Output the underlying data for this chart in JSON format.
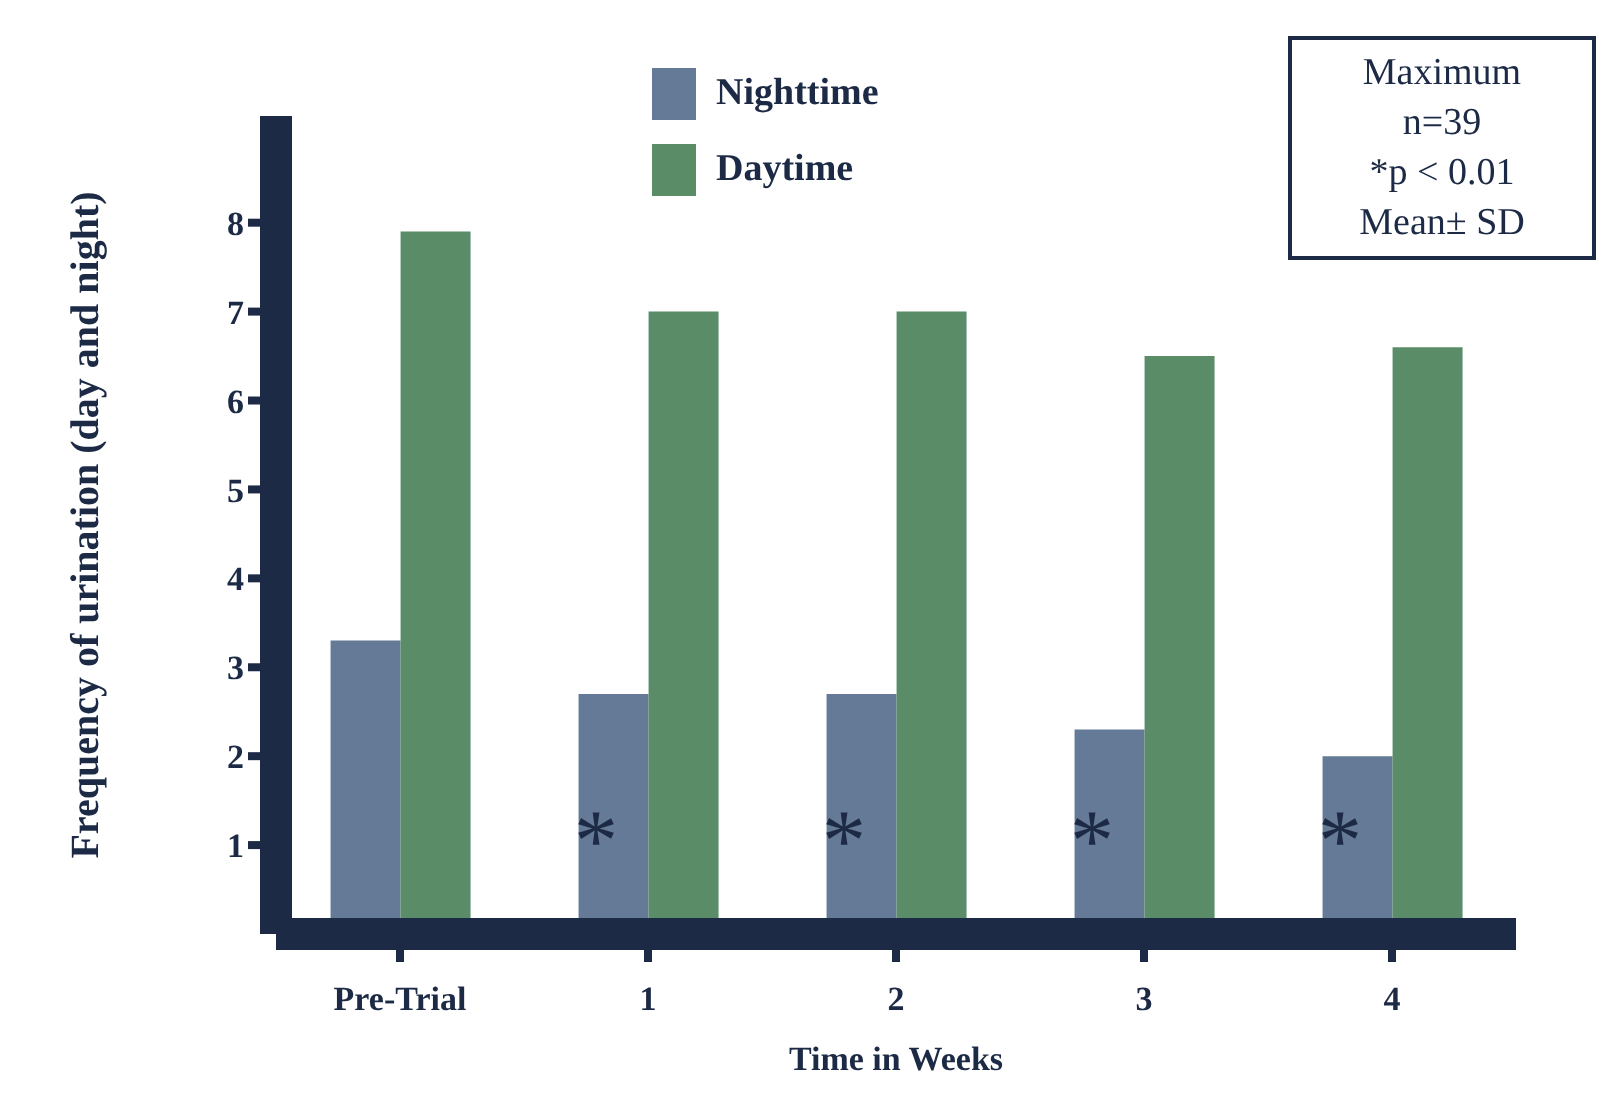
{
  "chart_data": {
    "type": "bar",
    "xlabel": "Time in Weeks",
    "ylabel": "Frequency of urination (day and night)",
    "categories": [
      "Pre-Trial",
      "1",
      "2",
      "3",
      "4"
    ],
    "series": [
      {
        "name": "Nighttime",
        "color": "#657a96",
        "values": [
          3.3,
          2.7,
          2.7,
          2.3,
          2.0
        ]
      },
      {
        "name": "Daytime",
        "color": "#5b8c68",
        "values": [
          7.9,
          7.0,
          7.0,
          6.5,
          6.6
        ]
      }
    ],
    "ylim": [
      0,
      9.2
    ],
    "yticks": [
      1,
      2,
      3,
      4,
      5,
      6,
      7,
      8
    ],
    "grid": false,
    "legend": "top",
    "annotations": [
      {
        "text": "*",
        "x": "1",
        "y": 1.3
      },
      {
        "text": "*",
        "x": "2",
        "y": 1.3
      },
      {
        "text": "*",
        "x": "3",
        "y": 1.3
      },
      {
        "text": "*",
        "x": "4",
        "y": 1.3
      },
      "Maximum\nn=39\n*p < 0.01\nMean± SD"
    ]
  }
}
